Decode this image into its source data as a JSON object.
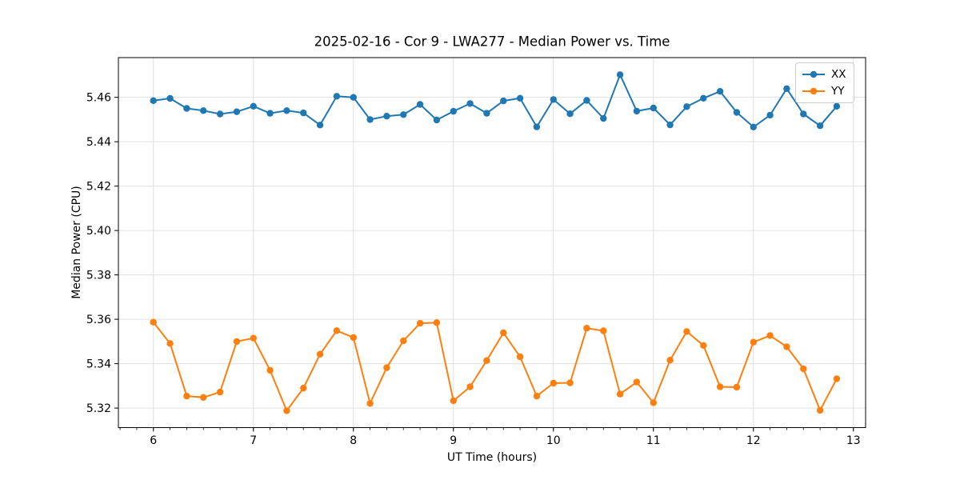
{
  "chart_data": {
    "type": "line",
    "title": "2025-02-16 - Cor 9 - LWA277 - Median Power vs. Time",
    "xlabel": "UT Time (hours)",
    "ylabel": "Median Power (CPU)",
    "xlim": [
      5.65,
      13.122
    ],
    "ylim": [
      5.3112,
      5.4779
    ],
    "grid": true,
    "legend_position": "upper right",
    "xticks": [
      6,
      7,
      8,
      9,
      10,
      11,
      12,
      13
    ],
    "xtick_labels": [
      "6",
      "7",
      "8",
      "9",
      "10",
      "11",
      "12",
      "13"
    ],
    "x_minor_step": 0.166667,
    "yticks": [
      5.32,
      5.34,
      5.36,
      5.38,
      5.4,
      5.42,
      5.44,
      5.46
    ],
    "ytick_labels": [
      "5.32",
      "5.34",
      "5.36",
      "5.38",
      "5.40",
      "5.42",
      "5.44",
      "5.46"
    ],
    "x": [
      6.0,
      6.167,
      6.333,
      6.5,
      6.667,
      6.833,
      7.0,
      7.167,
      7.333,
      7.5,
      7.667,
      7.833,
      8.0,
      8.167,
      8.333,
      8.5,
      8.667,
      8.833,
      9.0,
      9.167,
      9.333,
      9.5,
      9.667,
      9.833,
      10.0,
      10.167,
      10.333,
      10.5,
      10.667,
      10.833,
      11.0,
      11.167,
      11.333,
      11.5,
      11.667,
      11.833,
      12.0,
      12.167,
      12.333,
      12.5,
      12.667,
      12.833
    ],
    "series": [
      {
        "name": "XX",
        "color": "#1f77b4",
        "values": [
          5.4585,
          5.4595,
          5.455,
          5.454,
          5.4525,
          5.4535,
          5.456,
          5.4528,
          5.454,
          5.453,
          5.4475,
          5.4605,
          5.46,
          5.45,
          5.4515,
          5.4522,
          5.4568,
          5.4498,
          5.4537,
          5.4572,
          5.4528,
          5.4584,
          5.4596,
          5.4467,
          5.459,
          5.4526,
          5.4586,
          5.4505,
          5.4702,
          5.4538,
          5.4552,
          5.4476,
          5.4558,
          5.4596,
          5.4627,
          5.4532,
          5.4466,
          5.452,
          5.4639,
          5.4525,
          5.4472,
          5.456
        ]
      },
      {
        "name": "YY",
        "color": "#ff7f0e",
        "values": [
          5.3587,
          5.3491,
          5.3254,
          5.3248,
          5.3272,
          5.35,
          5.3515,
          5.337,
          5.3188,
          5.329,
          5.3443,
          5.3549,
          5.3518,
          5.3221,
          5.3382,
          5.3503,
          5.3582,
          5.3585,
          5.3233,
          5.3296,
          5.3414,
          5.3539,
          5.3431,
          5.3254,
          5.3312,
          5.3314,
          5.356,
          5.3548,
          5.3263,
          5.3317,
          5.3224,
          5.3416,
          5.3545,
          5.3482,
          5.3296,
          5.3294,
          5.3497,
          5.3527,
          5.3476,
          5.3377,
          5.319,
          5.3332
        ]
      }
    ]
  }
}
